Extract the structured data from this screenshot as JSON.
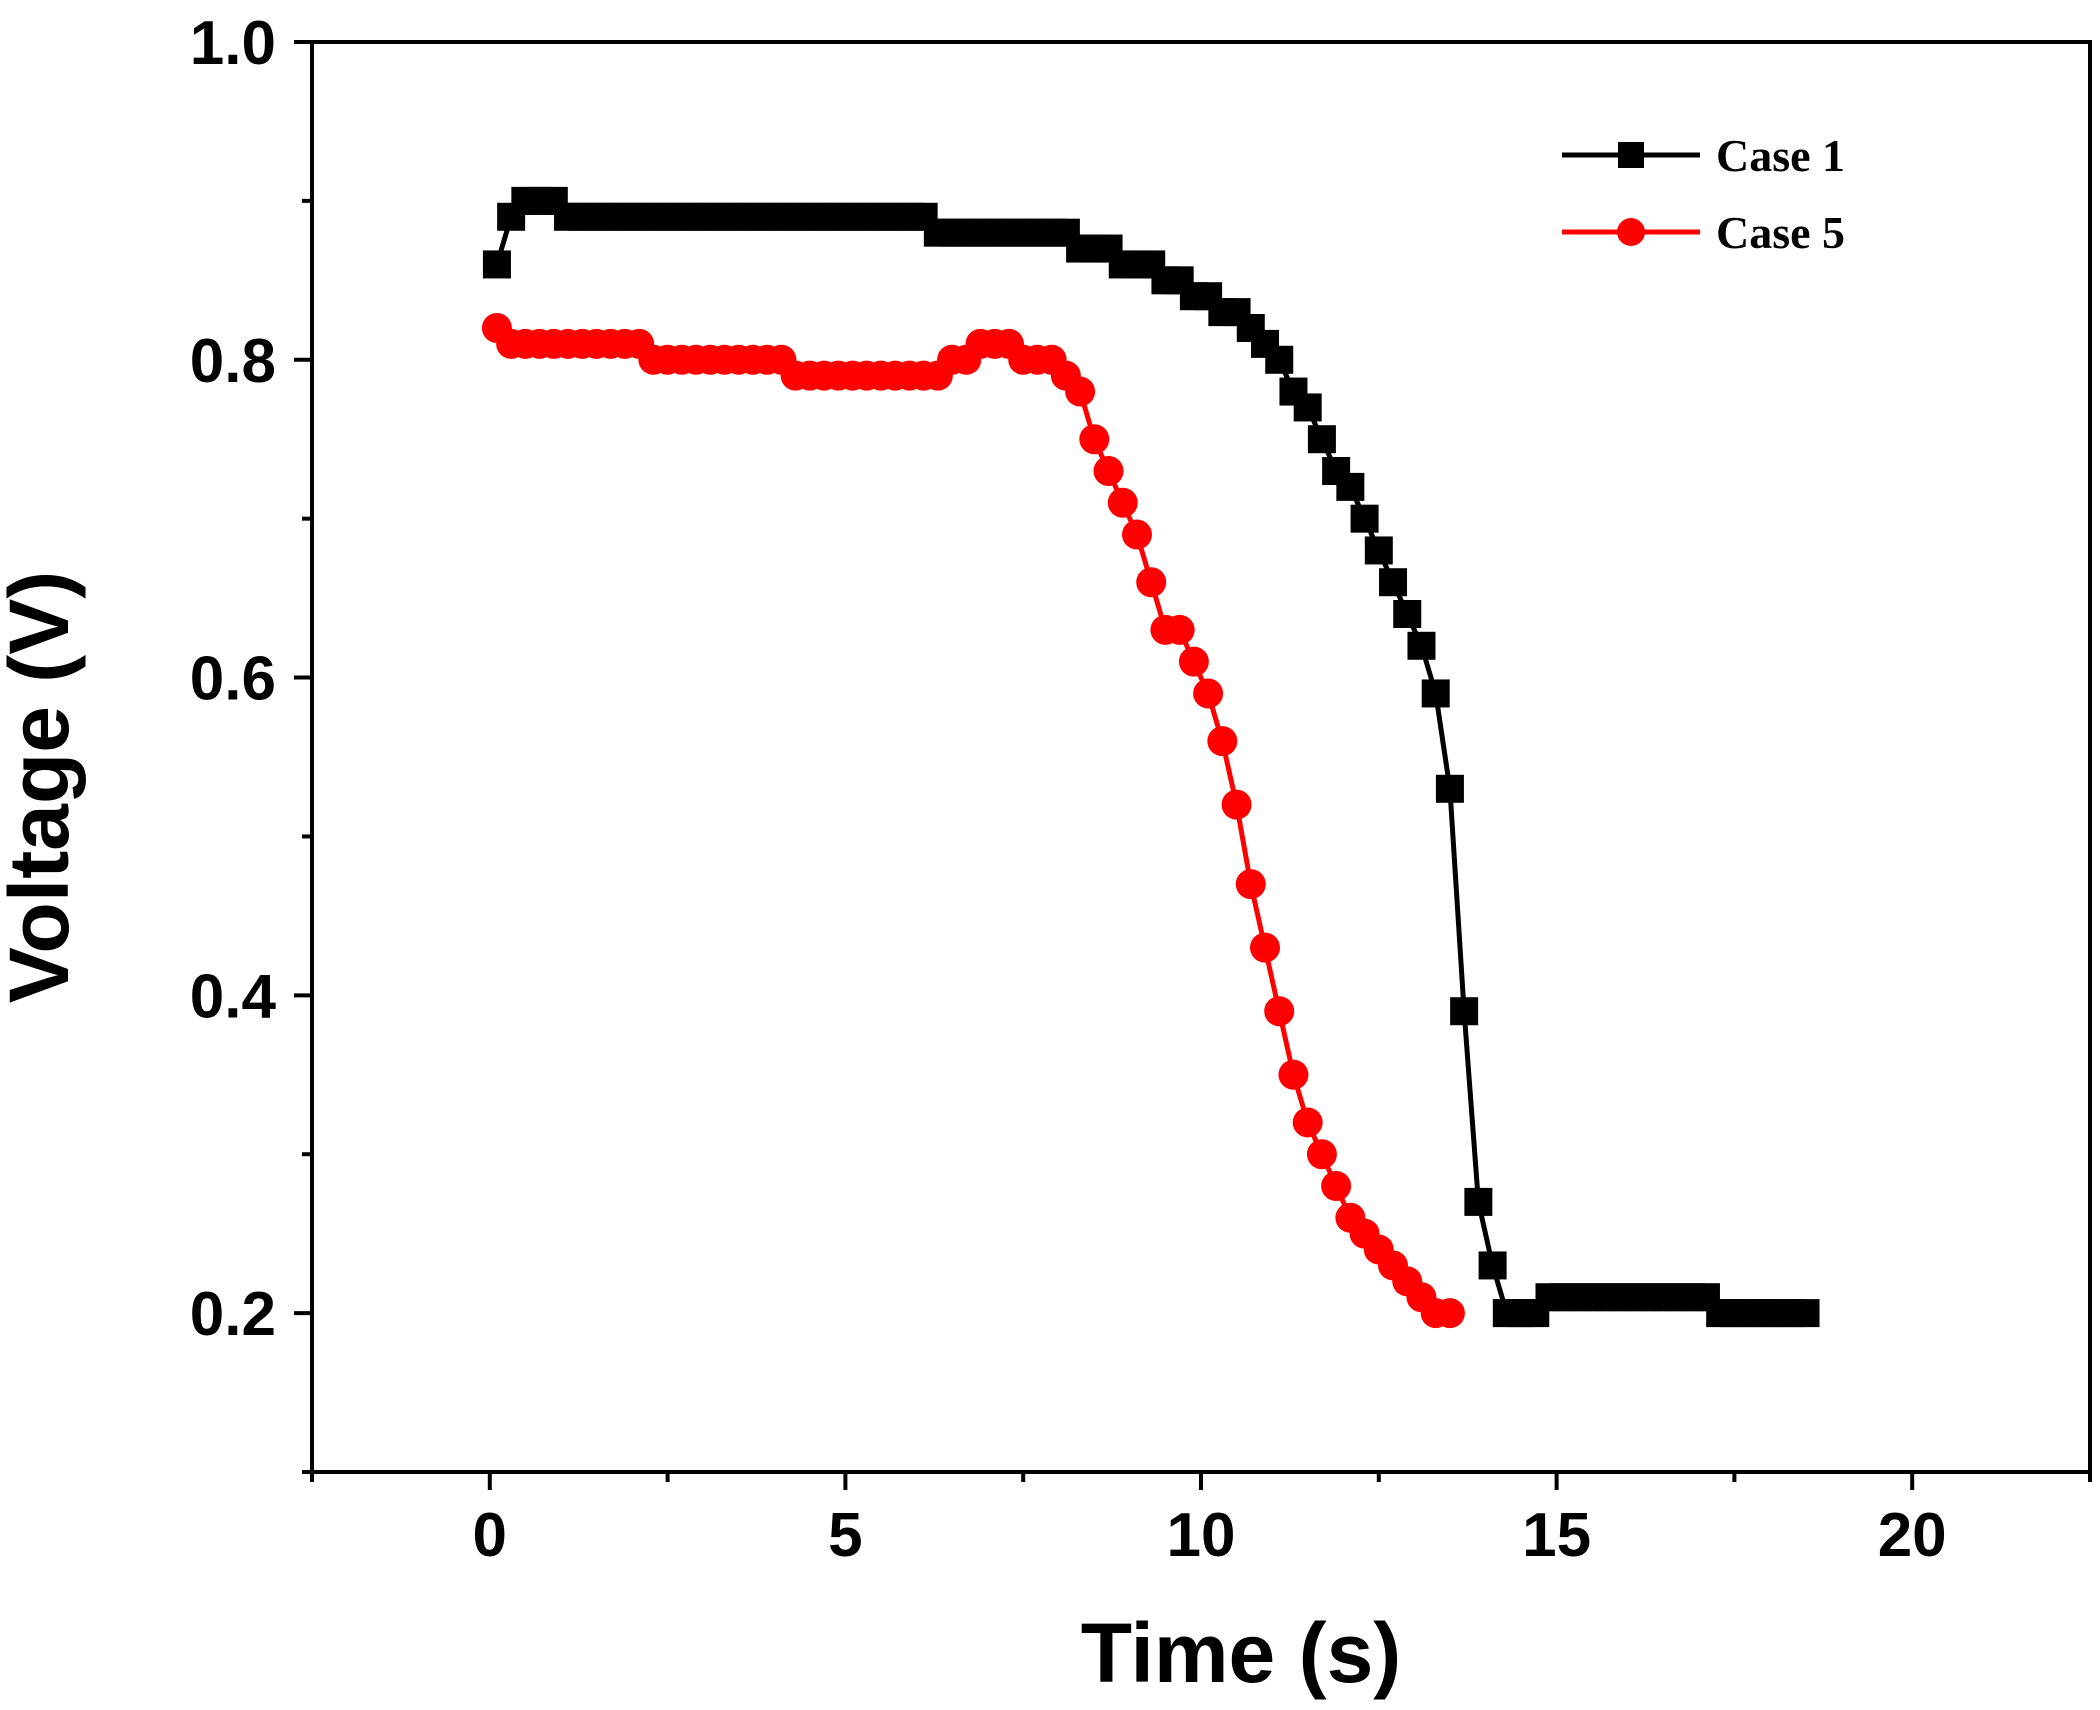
{
  "chart_data": {
    "type": "line",
    "title": "",
    "xlabel": "Time (s)",
    "ylabel": "Voltage (V)",
    "xlim": [
      -2.5,
      22.5
    ],
    "ylim": [
      0.1,
      1.0
    ],
    "xticks": [
      0,
      5,
      10,
      15,
      20
    ],
    "xtick_labels": [
      "0",
      "5",
      "10",
      "15",
      "20"
    ],
    "yticks": [
      0.2,
      0.4,
      0.6,
      0.8,
      1.0
    ],
    "ytick_labels": [
      "0.2",
      "0.4",
      "0.6",
      "0.8",
      "1.0"
    ],
    "grid": false,
    "legend_position": "top-right",
    "series": [
      {
        "name": "Case 1",
        "color": "#000000",
        "marker": "square",
        "x": [
          0.1,
          0.3,
          0.5,
          0.7,
          0.9,
          1.1,
          1.3,
          1.5,
          1.7,
          1.9,
          2.1,
          2.3,
          2.5,
          2.7,
          2.9,
          3.1,
          3.3,
          3.5,
          3.7,
          3.9,
          4.1,
          4.3,
          4.5,
          4.7,
          4.9,
          5.1,
          5.3,
          5.5,
          5.7,
          5.9,
          6.1,
          6.3,
          6.5,
          6.7,
          6.9,
          7.1,
          7.3,
          7.5,
          7.7,
          7.9,
          8.1,
          8.3,
          8.5,
          8.7,
          8.9,
          9.1,
          9.3,
          9.5,
          9.7,
          9.9,
          10.1,
          10.3,
          10.5,
          10.7,
          10.9,
          11.1,
          11.3,
          11.5,
          11.7,
          11.9,
          12.1,
          12.3,
          12.5,
          12.7,
          12.9,
          13.1,
          13.3,
          13.5,
          13.7,
          13.9,
          14.1,
          14.3,
          14.5,
          14.7,
          14.9,
          15.1,
          15.3,
          15.5,
          15.7,
          15.9,
          16.1,
          16.3,
          16.5,
          16.7,
          16.9,
          17.1,
          17.3,
          17.5,
          17.7,
          17.9,
          18.1,
          18.3,
          18.5
        ],
        "y": [
          0.86,
          0.89,
          0.9,
          0.9,
          0.9,
          0.89,
          0.89,
          0.89,
          0.89,
          0.89,
          0.89,
          0.89,
          0.89,
          0.89,
          0.89,
          0.89,
          0.89,
          0.89,
          0.89,
          0.89,
          0.89,
          0.89,
          0.89,
          0.89,
          0.89,
          0.89,
          0.89,
          0.89,
          0.89,
          0.89,
          0.89,
          0.88,
          0.88,
          0.88,
          0.88,
          0.88,
          0.88,
          0.88,
          0.88,
          0.88,
          0.88,
          0.87,
          0.87,
          0.87,
          0.86,
          0.86,
          0.86,
          0.85,
          0.85,
          0.84,
          0.84,
          0.83,
          0.83,
          0.82,
          0.81,
          0.8,
          0.78,
          0.77,
          0.75,
          0.73,
          0.72,
          0.7,
          0.68,
          0.66,
          0.64,
          0.62,
          0.59,
          0.53,
          0.39,
          0.27,
          0.23,
          0.2,
          0.2,
          0.2,
          0.21,
          0.21,
          0.21,
          0.21,
          0.21,
          0.21,
          0.21,
          0.21,
          0.21,
          0.21,
          0.21,
          0.21,
          0.2,
          0.2,
          0.2,
          0.2,
          0.2,
          0.2,
          0.2
        ]
      },
      {
        "name": "Case 5",
        "color": "#ff0000",
        "marker": "circle",
        "x": [
          0.1,
          0.3,
          0.5,
          0.7,
          0.9,
          1.1,
          1.3,
          1.5,
          1.7,
          1.9,
          2.1,
          2.3,
          2.5,
          2.7,
          2.9,
          3.1,
          3.3,
          3.5,
          3.7,
          3.9,
          4.1,
          4.3,
          4.5,
          4.7,
          4.9,
          5.1,
          5.3,
          5.5,
          5.7,
          5.9,
          6.1,
          6.3,
          6.5,
          6.7,
          6.9,
          7.1,
          7.3,
          7.5,
          7.7,
          7.9,
          8.1,
          8.3,
          8.5,
          8.7,
          8.9,
          9.1,
          9.3,
          9.5,
          9.7,
          9.9,
          10.1,
          10.3,
          10.5,
          10.7,
          10.9,
          11.1,
          11.3,
          11.5,
          11.7,
          11.9,
          12.1,
          12.3,
          12.5,
          12.7,
          12.9,
          13.1,
          13.3,
          13.5
        ],
        "y": [
          0.82,
          0.81,
          0.81,
          0.81,
          0.81,
          0.81,
          0.81,
          0.81,
          0.81,
          0.81,
          0.81,
          0.8,
          0.8,
          0.8,
          0.8,
          0.8,
          0.8,
          0.8,
          0.8,
          0.8,
          0.8,
          0.79,
          0.79,
          0.79,
          0.79,
          0.79,
          0.79,
          0.79,
          0.79,
          0.79,
          0.79,
          0.79,
          0.8,
          0.8,
          0.81,
          0.81,
          0.81,
          0.8,
          0.8,
          0.8,
          0.79,
          0.78,
          0.75,
          0.73,
          0.71,
          0.69,
          0.66,
          0.63,
          0.63,
          0.61,
          0.59,
          0.56,
          0.52,
          0.47,
          0.43,
          0.39,
          0.35,
          0.32,
          0.3,
          0.28,
          0.26,
          0.25,
          0.24,
          0.23,
          0.22,
          0.21,
          0.2,
          0.2
        ]
      }
    ]
  }
}
